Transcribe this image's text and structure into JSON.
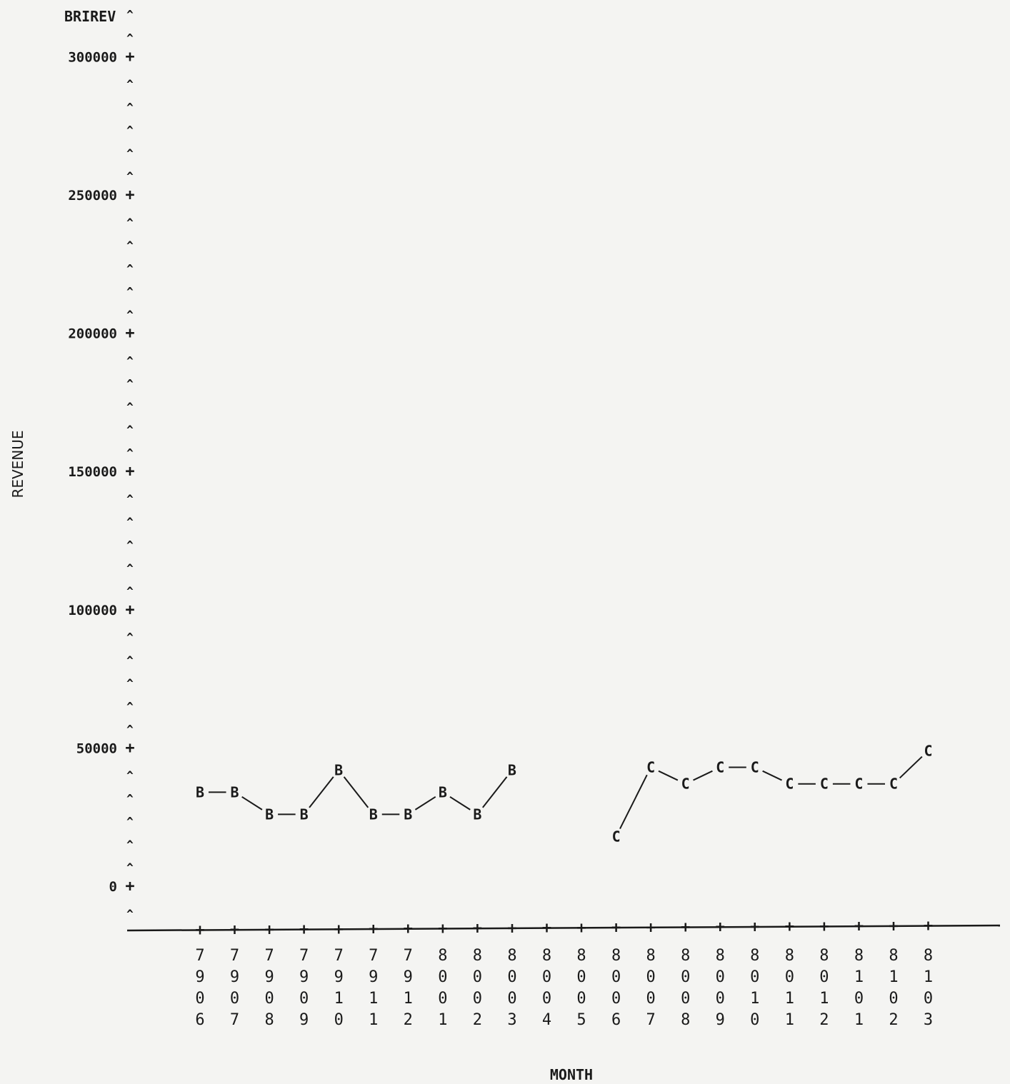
{
  "chart_data": {
    "type": "line",
    "title": "BRIREV",
    "xlabel": "MONTH",
    "ylabel": "REVENUE",
    "ylim": [
      -15000,
      320000
    ],
    "yticks": [
      0,
      50000,
      100000,
      150000,
      200000,
      250000,
      300000
    ],
    "ytick_labels": [
      "0",
      "50000",
      "100000",
      "150000",
      "200000",
      "250000",
      "300000"
    ],
    "categories": [
      "7906",
      "7907",
      "7908",
      "7909",
      "7910",
      "7911",
      "7912",
      "8001",
      "8002",
      "8003",
      "8004",
      "8005",
      "8006",
      "8007",
      "8008",
      "8009",
      "8010",
      "8011",
      "8012",
      "8101",
      "8102",
      "8103"
    ],
    "series": [
      {
        "name": "B",
        "symbol": "B",
        "values": [
          34000,
          34000,
          26000,
          26000,
          42000,
          26000,
          26000,
          34000,
          26000,
          42000,
          null,
          null,
          null,
          null,
          null,
          null,
          null,
          null,
          null,
          null,
          null,
          null
        ]
      },
      {
        "name": "C",
        "symbol": "C",
        "values": [
          null,
          null,
          null,
          null,
          null,
          null,
          null,
          null,
          null,
          null,
          null,
          null,
          18000,
          43000,
          37000,
          43000,
          43000,
          37000,
          37000,
          37000,
          37000,
          49000
        ]
      }
    ],
    "colors": {
      "ink": "#1a1a1a",
      "paper": "#f4f4f2"
    }
  }
}
